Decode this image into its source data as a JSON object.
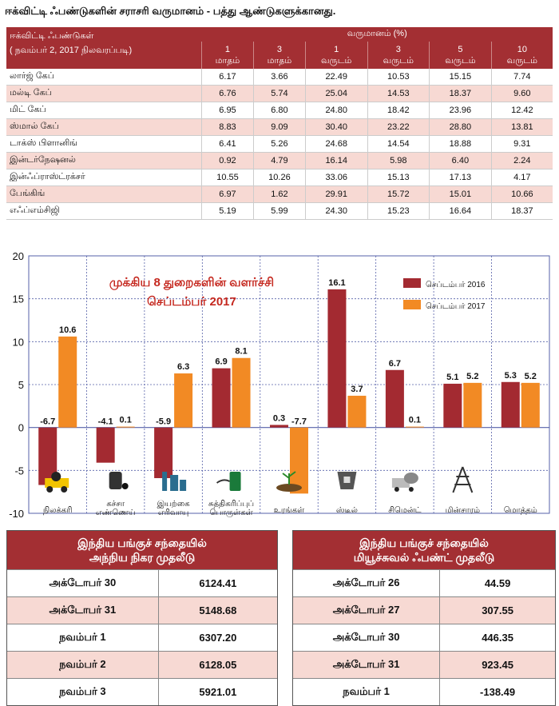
{
  "title": "ஈக்விட்டி ஃபண்டுகளின் சராசரி வருமானம் - பத்து ஆண்டுகளுக்கானது.",
  "returns_table": {
    "header_left_line1": "ஈக்விட்டி ஃபண்டுகள்",
    "header_left_line2": "( நவம்பர் 2, 2017  நிலவரப்படி)",
    "header_group": "வருமானம் (%)",
    "periods": [
      {
        "n": "1",
        "unit": "மாதம்"
      },
      {
        "n": "3",
        "unit": "மாதம்"
      },
      {
        "n": "1",
        "unit": "வருடம்"
      },
      {
        "n": "3",
        "unit": "வருடம்"
      },
      {
        "n": "5",
        "unit": "வருடம்"
      },
      {
        "n": "10",
        "unit": "வருடம்"
      }
    ],
    "rows": [
      {
        "name": "லார்ஜ் கேப்",
        "values": [
          "6.17",
          "3.66",
          "22.49",
          "10.53",
          "15.15",
          "7.74"
        ]
      },
      {
        "name": "மல்டி கேப்",
        "values": [
          "6.76",
          "5.74",
          "25.04",
          "14.53",
          "18.37",
          "9.60"
        ]
      },
      {
        "name": "மிட் கேப்",
        "values": [
          "6.95",
          "6.80",
          "24.80",
          "18.42",
          "23.96",
          "12.42"
        ]
      },
      {
        "name": "ஸ்மால் கேப்",
        "values": [
          "8.83",
          "9.09",
          "30.40",
          "23.22",
          "28.80",
          "13.81"
        ]
      },
      {
        "name": "டாக்ஸ் பிளானிங்",
        "values": [
          "6.41",
          "5.26",
          "24.68",
          "14.54",
          "18.88",
          "9.31"
        ]
      },
      {
        "name": "இன்டர்நேஷனல்",
        "values": [
          "0.92",
          "4.79",
          "16.14",
          "5.98",
          "6.40",
          "2.24"
        ]
      },
      {
        "name": "இன்ஃப்ராஸ்ட்ரக்சர்",
        "values": [
          "10.55",
          "10.26",
          "33.06",
          "15.13",
          "17.13",
          "4.17"
        ]
      },
      {
        "name": "பேங்கிங்",
        "values": [
          "6.97",
          "1.62",
          "29.91",
          "15.72",
          "15.01",
          "10.66"
        ]
      },
      {
        "name": "எஃப்எம்சிஜி",
        "values": [
          "5.19",
          "5.99",
          "24.30",
          "15.23",
          "16.64",
          "18.37"
        ]
      }
    ]
  },
  "chart_data": {
    "type": "bar",
    "title_line1": "முக்கிய 8 துறைகளின் வளர்ச்சி",
    "title_line2": "செப்டம்பர் 2017",
    "categories": [
      "நிலக்கரி",
      "கச்சா எண்ணெய்",
      "இயற்கை எரிவாயு",
      "சுத்திகரிப்புப் பொருள்கள்",
      "உரங்கள்",
      "ஸ்டீல்",
      "சிமென்ட்",
      "மின்சாரம்",
      "மொத்தம்"
    ],
    "series": [
      {
        "name": "செப்டம்பர் 2016",
        "color": "#a32a31",
        "values": [
          -6.7,
          -4.1,
          -5.9,
          6.9,
          0.3,
          16.1,
          6.7,
          5.1,
          5.3
        ]
      },
      {
        "name": "செப்டம்பர் 2017",
        "color": "#f28a24",
        "values": [
          10.6,
          0.1,
          6.3,
          8.1,
          -7.7,
          3.7,
          0.1,
          5.2,
          5.2
        ]
      }
    ],
    "ylim": [
      -10,
      20
    ],
    "yticks": [
      -10,
      -5,
      0,
      5,
      10,
      15,
      20
    ],
    "grid": true,
    "legend": "top-right",
    "icons": [
      "coal-truck-icon",
      "oil-barrel-icon",
      "gas-plant-icon",
      "fuel-pump-icon",
      "fertilizer-plant-icon",
      "steel-ladle-icon",
      "cement-mixer-icon",
      "power-tower-icon",
      ""
    ]
  },
  "fii_table": {
    "title_line1": "இந்திய பங்குச் சந்தையில்",
    "title_line2": "அந்நிய நிகர முதலீடு",
    "rows": [
      {
        "date": "அக்டோபர் 30",
        "value": "6124.41"
      },
      {
        "date": "அக்டோபர் 31",
        "value": "5148.68"
      },
      {
        "date": "நவம்பர்  1",
        "value": "6307.20"
      },
      {
        "date": "நவம்பர்  2",
        "value": "6128.05"
      },
      {
        "date": "நவம்பர்  3",
        "value": "5921.01"
      }
    ]
  },
  "mf_table": {
    "title_line1": "இந்திய பங்குச் சந்தையில்",
    "title_line2": "மியூச்சுவல் ஃபண்ட் முதலீடு",
    "rows": [
      {
        "date": "அக்டோபர் 26",
        "value": "44.59"
      },
      {
        "date": "அக்டோபர் 27",
        "value": "307.55"
      },
      {
        "date": "அக்டோபர் 30",
        "value": "446.35"
      },
      {
        "date": "அக்டோபர் 31",
        "value": "923.45"
      },
      {
        "date": "நவம்பர்  1",
        "value": "-138.49"
      }
    ]
  }
}
